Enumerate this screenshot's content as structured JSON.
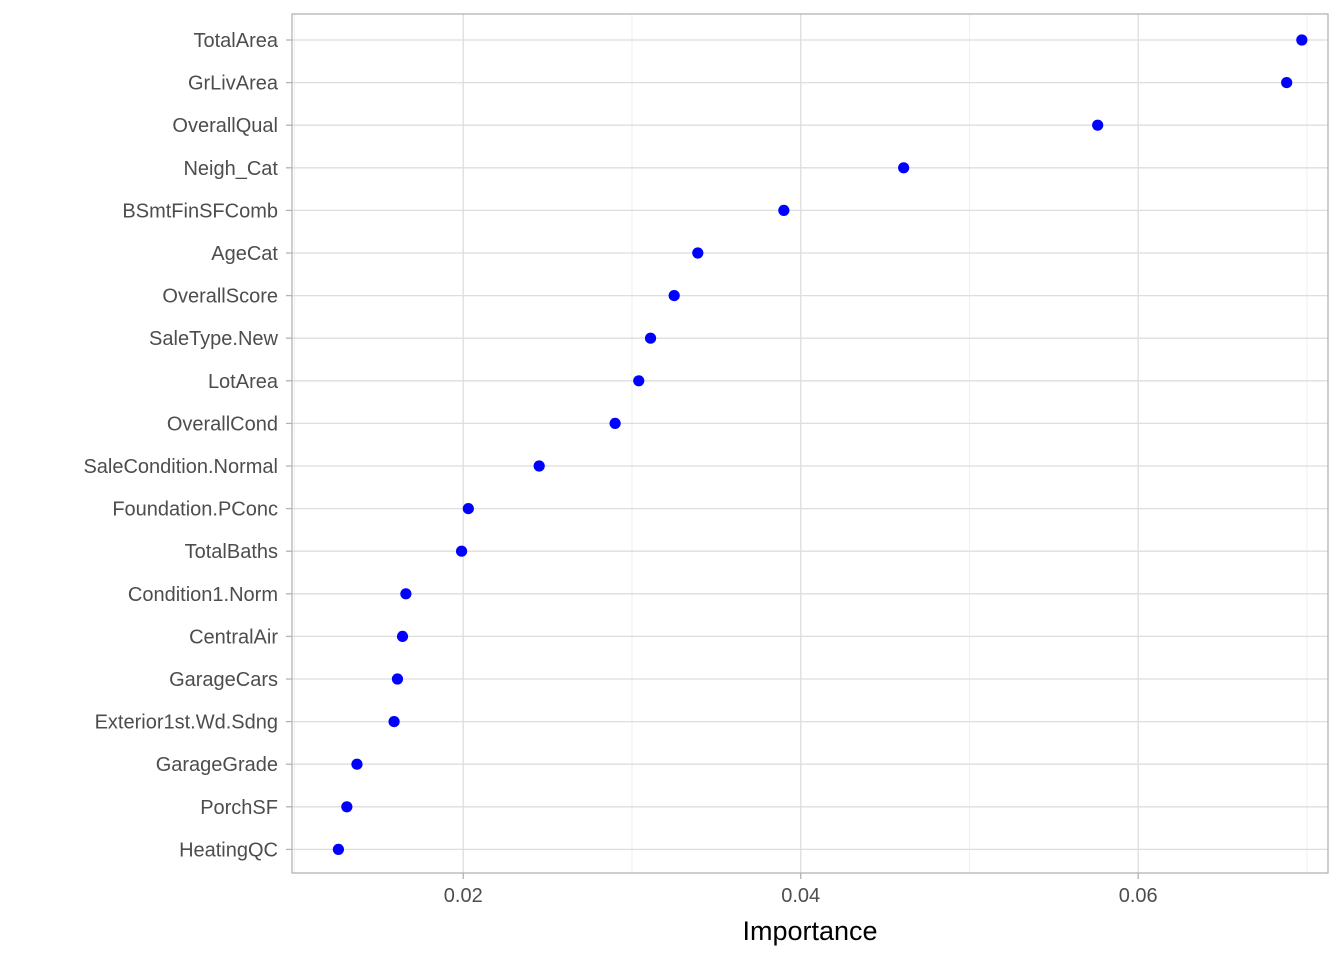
{
  "chart_data": {
    "type": "scatter",
    "title": "",
    "xlabel": "Importance",
    "ylabel": "",
    "xlim": [
      0.00985,
      0.07125
    ],
    "x_ticks": [
      {
        "value": 0.02,
        "label": "0.02"
      },
      {
        "value": 0.04,
        "label": "0.04"
      },
      {
        "value": 0.06,
        "label": "0.06"
      }
    ],
    "grid": true,
    "legend": "none",
    "point_color": "#0000ff",
    "categories": [
      "TotalArea",
      "GrLivArea",
      "OverallQual",
      "Neigh_Cat",
      "BSmtFinSFComb",
      "AgeCat",
      "OverallScore",
      "SaleType.New",
      "LotArea",
      "OverallCond",
      "SaleCondition.Normal",
      "Foundation.PConc",
      "TotalBaths",
      "Condition1.Norm",
      "CentralAir",
      "GarageCars",
      "Exterior1st.Wd.Sdng",
      "GarageGrade",
      "PorchSF",
      "HeatingQC"
    ],
    "values": [
      0.0697,
      0.0688,
      0.0576,
      0.0461,
      0.039,
      0.0339,
      0.0325,
      0.0311,
      0.0304,
      0.029,
      0.0245,
      0.0203,
      0.0199,
      0.0166,
      0.0164,
      0.0161,
      0.0159,
      0.0137,
      0.0131,
      0.0126
    ]
  }
}
